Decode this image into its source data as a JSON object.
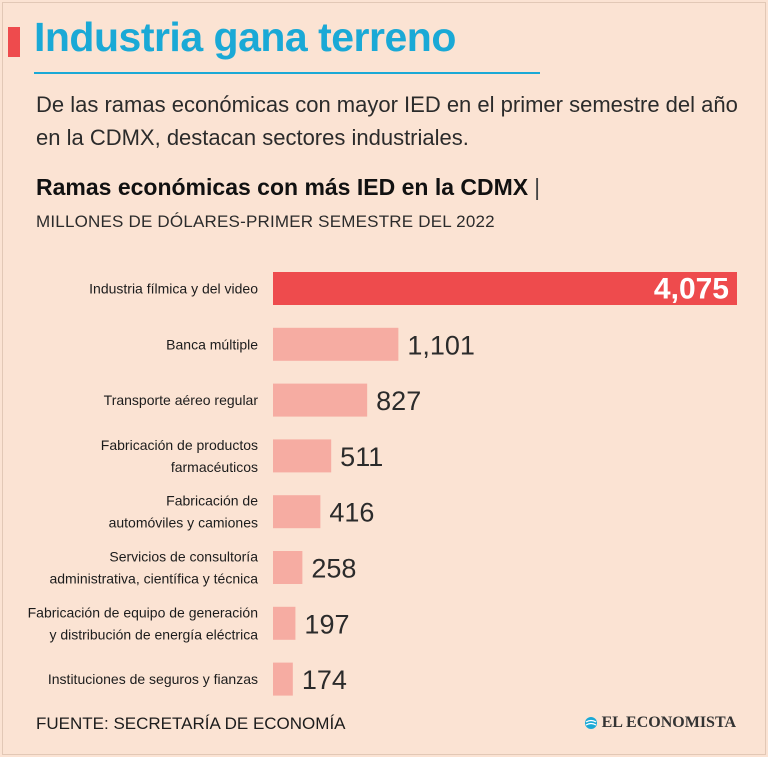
{
  "header": {
    "title": "Industria gana terreno",
    "subtitle": "De las ramas económicas con mayor IED en el primer semestre del año en la CDMX, destacan sectores industriales."
  },
  "chart_data": {
    "type": "bar",
    "orientation": "horizontal",
    "title": "Ramas económicas con más IED en la CDMX",
    "title_separator": "|",
    "subtitle": "MILLONES DE DÓLARES-PRIMER SEMESTRE DEL 2022",
    "categories": [
      [
        "Industria fílmica y del video"
      ],
      [
        "Banca múltiple"
      ],
      [
        "Transporte aéreo regular"
      ],
      [
        "Fabricación de productos",
        "farmacéuticos"
      ],
      [
        "Fabricación de",
        "automóviles y camiones"
      ],
      [
        "Servicios de consultoría",
        "administrativa, científica y técnica"
      ],
      [
        "Fabricación de equipo de generación",
        "y distribución de energía eléctrica"
      ],
      [
        "Instituciones de seguros y fianzas"
      ]
    ],
    "values": [
      4075,
      1101,
      827,
      511,
      416,
      258,
      197,
      174
    ],
    "value_labels": [
      "4,075",
      "1,101",
      "827",
      "511",
      "416",
      "258",
      "197",
      "174"
    ],
    "highlight_index": 0,
    "xlim": [
      0,
      4075
    ],
    "grid": false
  },
  "colors": {
    "highlight": "#ee4b4d",
    "bar": "#f6aca2",
    "title": "#1aa9d6",
    "accent": "#ee4b4d"
  },
  "footer": {
    "source": "FUENTE: SECRETARÍA DE ECONOMÍA",
    "brand": "EL ECONOMISTA",
    "brand_icon": "globe-icon"
  }
}
